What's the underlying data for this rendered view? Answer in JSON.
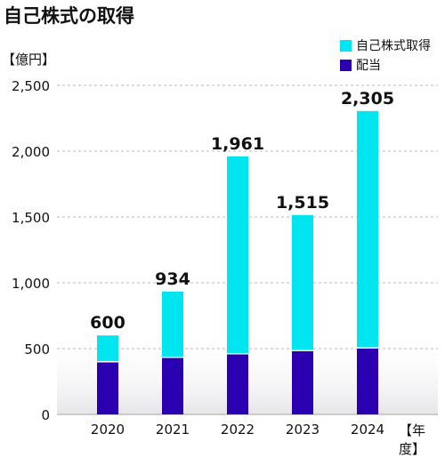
{
  "chart_data": {
    "type": "bar",
    "stacked": true,
    "title": "自己株式の取得",
    "ylabel": "【億円】",
    "xlabel": "【年度】",
    "categories": [
      "2020",
      "2021",
      "2022",
      "2023",
      "2024"
    ],
    "series": [
      {
        "name": "配当",
        "values": [
          400,
          434,
          461,
          485,
          505
        ],
        "color": "#2a00b0"
      },
      {
        "name": "自己株式取得",
        "values": [
          200,
          500,
          1500,
          1030,
          1800
        ],
        "color": "#00e5f0"
      }
    ],
    "totals": [
      600,
      934,
      1961,
      1515,
      2305
    ],
    "total_labels": [
      "600",
      "934",
      "1,961",
      "1,515",
      "2,305"
    ],
    "ylim": [
      0,
      2500
    ],
    "yticks": [
      0,
      500,
      1000,
      1500,
      2000,
      2500
    ],
    "ytick_labels": [
      "0",
      "500",
      "1,000",
      "1,500",
      "2,000",
      "2,500"
    ],
    "grid": true,
    "legend_position": "top-right"
  }
}
